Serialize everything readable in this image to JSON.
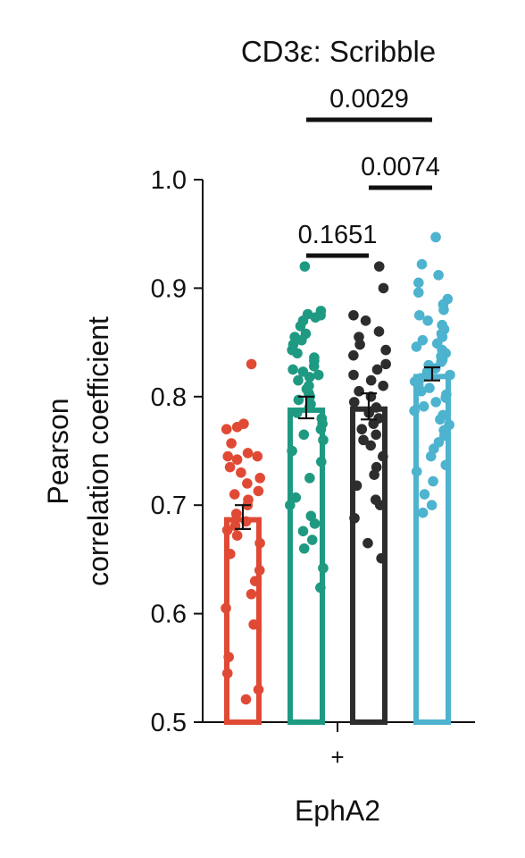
{
  "chart_data": {
    "type": "bar",
    "title": "CD3ε: Scribble",
    "ylabel_lines": [
      "Pearson",
      "correlation coefficient"
    ],
    "xlabel": "EphA2",
    "x_tick_label": "+",
    "ylim": [
      0.5,
      1.0
    ],
    "y_ticks": [
      "0.5",
      "0.6",
      "0.7",
      "0.8",
      "0.9",
      "1.0"
    ],
    "bars": [
      {
        "value": 0.689,
        "error": 0.011,
        "color": "#e04a35",
        "points": [
          0.83,
          0.775,
          0.772,
          0.77,
          0.757,
          0.748,
          0.745,
          0.745,
          0.742,
          0.735,
          0.73,
          0.725,
          0.72,
          0.713,
          0.71,
          0.705,
          0.7,
          0.692,
          0.685,
          0.681,
          0.677,
          0.672,
          0.665,
          0.655,
          0.64,
          0.63,
          0.618,
          0.605,
          0.59,
          0.56,
          0.545,
          0.53,
          0.521
        ]
      },
      {
        "value": 0.79,
        "error": 0.01,
        "color": "#1f9a82",
        "points": [
          0.92,
          0.879,
          0.876,
          0.875,
          0.873,
          0.87,
          0.865,
          0.858,
          0.855,
          0.852,
          0.848,
          0.843,
          0.84,
          0.836,
          0.833,
          0.828,
          0.825,
          0.823,
          0.82,
          0.818,
          0.815,
          0.81,
          0.807,
          0.803,
          0.8,
          0.797,
          0.793,
          0.79,
          0.785,
          0.78,
          0.775,
          0.77,
          0.765,
          0.76,
          0.75,
          0.74,
          0.725,
          0.707,
          0.7,
          0.69,
          0.683,
          0.676,
          0.668,
          0.66,
          0.642,
          0.624
        ]
      },
      {
        "value": 0.791,
        "error": 0.012,
        "color": "#2d2d2d",
        "points": [
          0.92,
          0.9,
          0.875,
          0.87,
          0.86,
          0.855,
          0.848,
          0.843,
          0.838,
          0.83,
          0.825,
          0.82,
          0.815,
          0.81,
          0.805,
          0.8,
          0.795,
          0.79,
          0.785,
          0.78,
          0.775,
          0.77,
          0.765,
          0.76,
          0.755,
          0.745,
          0.735,
          0.728,
          0.718,
          0.705,
          0.7,
          0.688,
          0.665,
          0.651
        ]
      },
      {
        "value": 0.821,
        "error": 0.006,
        "color": "#4db3cf",
        "points": [
          0.947,
          0.922,
          0.912,
          0.905,
          0.896,
          0.89,
          0.885,
          0.88,
          0.875,
          0.87,
          0.866,
          0.862,
          0.858,
          0.855,
          0.852,
          0.849,
          0.846,
          0.843,
          0.84,
          0.837,
          0.834,
          0.832,
          0.829,
          0.826,
          0.823,
          0.82,
          0.817,
          0.814,
          0.811,
          0.808,
          0.805,
          0.802,
          0.799,
          0.795,
          0.791,
          0.787,
          0.783,
          0.779,
          0.774,
          0.769,
          0.764,
          0.758,
          0.752,
          0.745,
          0.737,
          0.731,
          0.722,
          0.71,
          0.7,
          0.693
        ]
      }
    ],
    "comparisons": [
      {
        "from": 1,
        "to": 2,
        "label": "0.1651"
      },
      {
        "from": 2,
        "to": 3,
        "label": "0.0074"
      },
      {
        "from": 1,
        "to": 3,
        "label": "0.0029"
      }
    ]
  }
}
